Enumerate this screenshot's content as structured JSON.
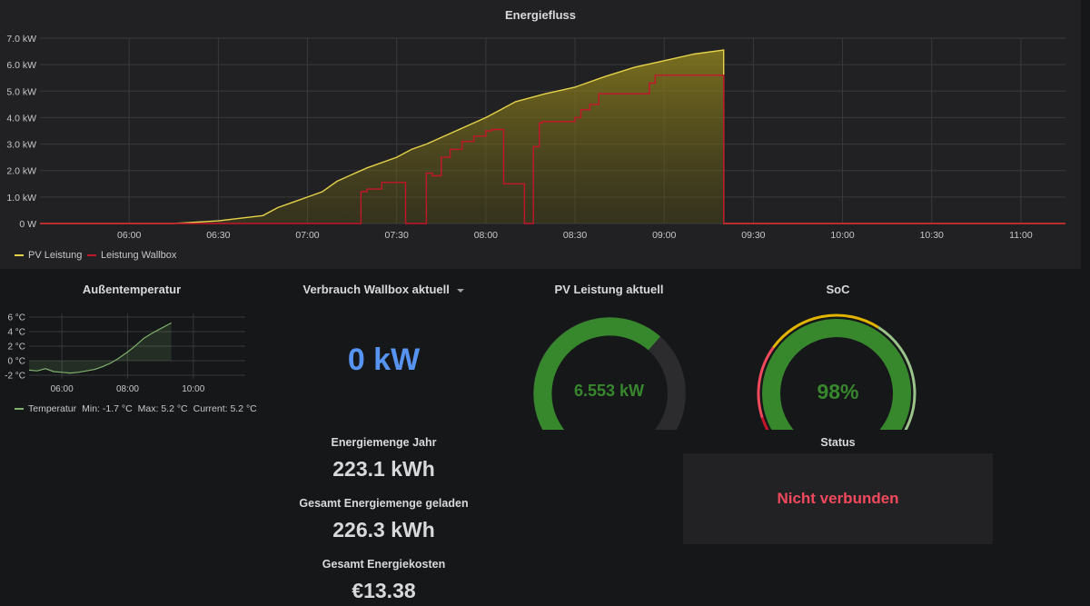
{
  "energy_panel": {
    "title": "Energiefluss",
    "legend": [
      {
        "label": "PV Leistung",
        "color": "#e5d34a"
      },
      {
        "label": "Leistung Wallbox",
        "color": "#c4162a"
      }
    ]
  },
  "temp_panel": {
    "title": "Außentemperatur",
    "legend": {
      "label": "Temperatur",
      "min": "Min: -1.7 °C",
      "max": "Max: 5.2 °C",
      "current": "Current: 5.2 °C"
    }
  },
  "wallbox_panel": {
    "title": "Verbrauch Wallbox aktuell",
    "value": "0 kW"
  },
  "pv_panel": {
    "title": "PV Leistung aktuell",
    "value": "6.553 kW",
    "fraction": 0.655
  },
  "soc_panel": {
    "title": "SoC",
    "value": "98%",
    "fraction": 0.98
  },
  "energy_year": {
    "title": "Energiemenge Jahr",
    "value": "223.1 kWh"
  },
  "energy_total": {
    "title": "Gesamt Energiemenge geladen",
    "value": "226.3 kWh"
  },
  "energy_cost": {
    "title": "Gesamt Energiekosten",
    "value": "€13.38"
  },
  "status_panel": {
    "title": "Status",
    "value": "Nicht verbunden",
    "color": "#f2495c"
  },
  "chart_data": [
    {
      "type": "line",
      "title": "Energiefluss",
      "y_ticks": [
        "0 W",
        "1.0 kW",
        "2.0 kW",
        "3.0 kW",
        "4.0 kW",
        "5.0 kW",
        "6.0 kW",
        "7.0 kW"
      ],
      "x_ticks": [
        "06:00",
        "06:30",
        "07:00",
        "07:30",
        "08:00",
        "08:30",
        "09:00",
        "09:30",
        "10:00",
        "10:30",
        "11:00"
      ],
      "ylim": [
        0,
        7
      ],
      "y_unit": "kW",
      "series": [
        {
          "name": "PV Leistung",
          "color": "#e5d34a",
          "fill": true,
          "x": [
            "05:30",
            "06:15",
            "06:30",
            "06:45",
            "06:50",
            "06:55",
            "07:00",
            "07:05",
            "07:10",
            "07:20",
            "07:30",
            "07:35",
            "07:40",
            "07:50",
            "08:00",
            "08:05",
            "08:10",
            "08:20",
            "08:30",
            "08:40",
            "08:50",
            "09:00",
            "09:10",
            "09:20",
            "09:20",
            "11:15"
          ],
          "values": [
            0,
            0,
            0.1,
            0.3,
            0.6,
            0.8,
            1.0,
            1.2,
            1.6,
            2.1,
            2.5,
            2.8,
            3.0,
            3.5,
            4.0,
            4.3,
            4.6,
            4.9,
            5.15,
            5.55,
            5.9,
            6.15,
            6.4,
            6.553,
            0,
            0
          ]
        },
        {
          "name": "Leistung Wallbox",
          "color": "#c4162a",
          "fill": false,
          "x": [
            "05:30",
            "07:18",
            "07:18",
            "07:20",
            "07:20",
            "07:25",
            "07:25",
            "07:33",
            "07:33",
            "07:40",
            "07:40",
            "07:42",
            "07:42",
            "07:45",
            "07:45",
            "07:48",
            "07:48",
            "07:52",
            "07:52",
            "07:56",
            "07:56",
            "08:00",
            "08:00",
            "08:02",
            "08:02",
            "08:06",
            "08:06",
            "08:13",
            "08:13",
            "08:16",
            "08:16",
            "08:18",
            "08:18",
            "08:19",
            "08:19",
            "08:23",
            "08:23",
            "08:30",
            "08:30",
            "08:32",
            "08:32",
            "08:35",
            "08:35",
            "08:38",
            "08:38",
            "08:42",
            "08:42",
            "08:55",
            "08:55",
            "08:57",
            "08:57",
            "09:20",
            "09:20",
            "11:15"
          ],
          "values": [
            0,
            0,
            1.2,
            1.2,
            1.3,
            1.3,
            1.55,
            1.55,
            0,
            0,
            1.9,
            1.9,
            1.8,
            1.8,
            2.5,
            2.5,
            2.8,
            2.8,
            3.1,
            3.1,
            3.3,
            3.3,
            3.5,
            3.5,
            3.55,
            3.55,
            1.5,
            1.5,
            0,
            0,
            2.9,
            2.9,
            3.8,
            3.8,
            3.85,
            3.85,
            3.85,
            3.85,
            4.0,
            4.0,
            4.3,
            4.3,
            4.5,
            4.5,
            4.9,
            4.9,
            4.9,
            4.9,
            5.3,
            5.3,
            5.6,
            5.6,
            0,
            0
          ]
        }
      ]
    },
    {
      "type": "area",
      "title": "Außentemperatur",
      "y_ticks": [
        "6 °C",
        "4 °C",
        "2 °C",
        "0 °C",
        "-2 °C"
      ],
      "x_ticks": [
        "06:00",
        "08:00",
        "10:00"
      ],
      "ylim": [
        -2.5,
        6.5
      ],
      "series": [
        {
          "name": "Temperatur",
          "color": "#7eb26d",
          "x": [
            "05:00",
            "05:15",
            "05:30",
            "05:45",
            "06:00",
            "06:15",
            "06:30",
            "06:45",
            "07:00",
            "07:15",
            "07:30",
            "07:45",
            "08:00",
            "08:15",
            "08:30",
            "08:45",
            "09:00",
            "09:15",
            "09:20"
          ],
          "values": [
            -1.3,
            -1.4,
            -1.1,
            -1.5,
            -1.6,
            -1.7,
            -1.6,
            -1.4,
            -1.2,
            -0.8,
            -0.3,
            0.4,
            1.2,
            2.1,
            3.1,
            3.8,
            4.4,
            5.0,
            5.2
          ]
        }
      ]
    }
  ]
}
